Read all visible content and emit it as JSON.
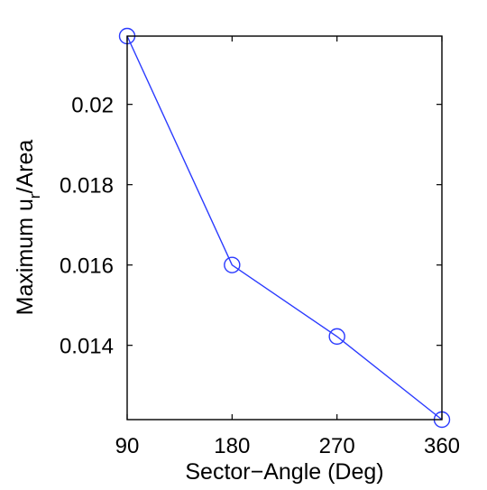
{
  "chart_data": {
    "type": "line",
    "xlabel": "Sector−Angle (Deg)",
    "ylabel": {
      "pre": "Maximum u",
      "sub": "r",
      "post": "/Area"
    },
    "x": [
      90,
      180,
      270,
      360
    ],
    "series": [
      {
        "values": [
          0.0217,
          0.016,
          0.01422,
          0.01215
        ],
        "color": "#2b3bff",
        "marker": "circle-open"
      }
    ],
    "xlim": [
      90,
      360
    ],
    "ylim": [
      0.01215,
      0.0217
    ],
    "x_ticks": [
      90,
      180,
      270,
      360
    ],
    "x_tick_labels": [
      "90",
      "180",
      "270",
      "360"
    ],
    "y_ticks": [
      0.014,
      0.016,
      0.018,
      0.02
    ],
    "y_tick_labels": [
      "0.014",
      "0.016",
      "0.018",
      "0.02"
    ],
    "grid": false,
    "box": true
  }
}
